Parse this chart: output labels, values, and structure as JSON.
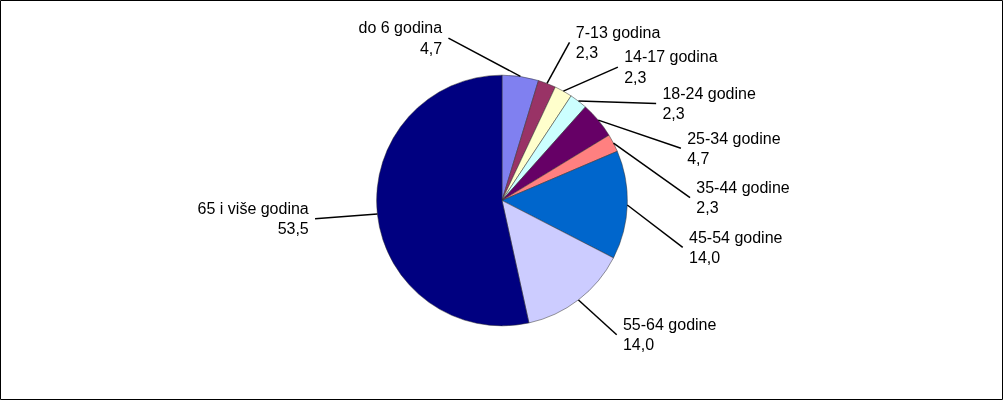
{
  "chart_data": {
    "type": "pie",
    "categories": [
      "do 6 godina",
      "7-13 godina",
      "14-17 godina",
      "18-24 godine",
      "25-34 godine",
      "35-44 godine",
      "45-54 godine",
      "55-64 godine",
      "65 i više godina"
    ],
    "values": [
      4.7,
      2.3,
      2.3,
      2.3,
      4.7,
      2.3,
      14.0,
      14.0,
      53.5
    ],
    "colors": [
      "#8080f0",
      "#993366",
      "#ffffcc",
      "#ccffff",
      "#660066",
      "#ff8080",
      "#0066cc",
      "#ccccff",
      "#000080"
    ],
    "value_labels": [
      "4,7",
      "2,3",
      "2,3",
      "2,3",
      "4,7",
      "2,3",
      "14,0",
      "14,0",
      "53,5"
    ]
  }
}
